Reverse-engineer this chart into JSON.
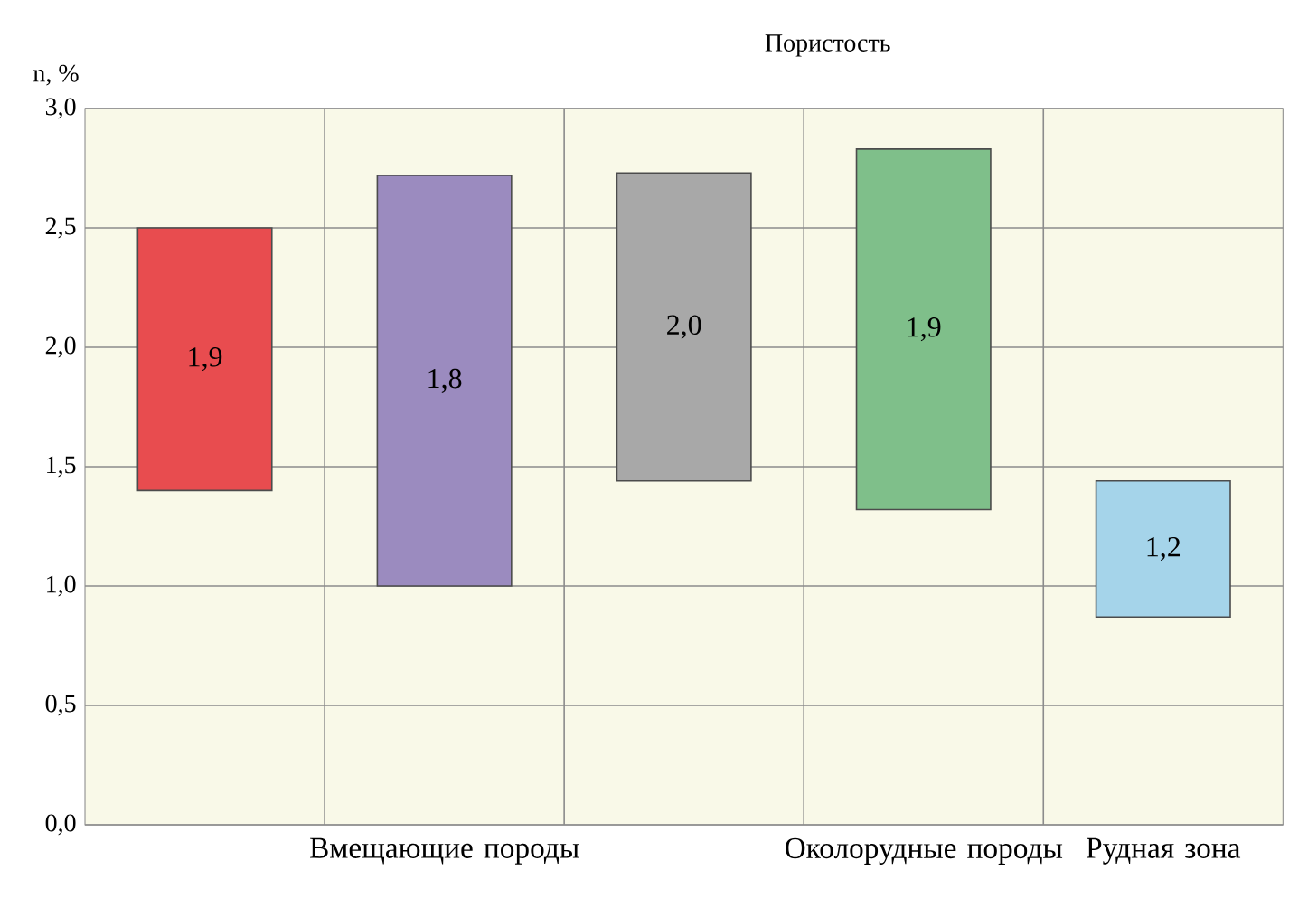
{
  "chart_data": {
    "type": "bar",
    "title": "Пористость",
    "ylabel": "n, %",
    "categories": [
      null,
      "Вмещающие породы",
      null,
      "Околорудные породы",
      "Рудная зона"
    ],
    "base": [
      1.4,
      1.0,
      1.44,
      1.32,
      0.87
    ],
    "values": [
      1.1,
      1.72,
      1.29,
      1.51,
      0.57
    ],
    "colors": [
      "#e84c4f",
      "#9b8bbf",
      "#a8a8a8",
      "#7fbf8a",
      "#a5d4ea"
    ],
    "annotations": [
      "1,9",
      "1,8",
      "2,0",
      "1,9",
      "1,2"
    ],
    "ylim": [
      0,
      3
    ],
    "yticks": [
      {
        "value": 0,
        "label": "0,0"
      },
      {
        "value": 0.5,
        "label": "0,5"
      },
      {
        "value": 1,
        "label": "1,0"
      },
      {
        "value": 1.5,
        "label": "1,5"
      },
      {
        "value": 2,
        "label": "2,0"
      },
      {
        "value": 2.5,
        "label": "2,5"
      },
      {
        "value": 3,
        "label": "3,0"
      }
    ],
    "grid": true
  }
}
